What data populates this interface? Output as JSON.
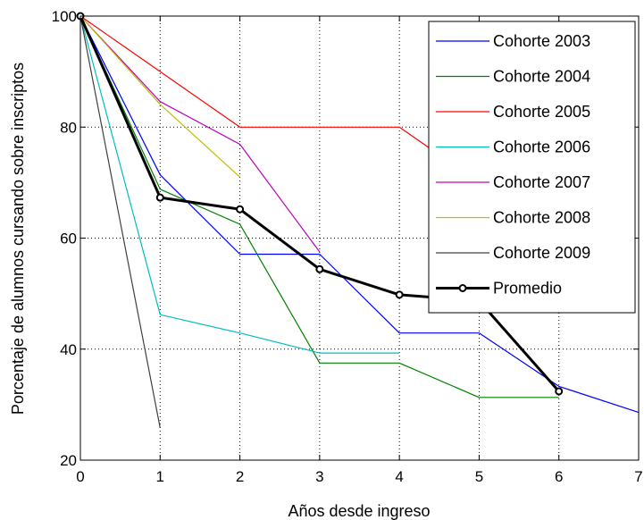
{
  "chart_data": {
    "type": "line",
    "title": "",
    "xlabel": "Años desde ingreso",
    "ylabel": "Porcentaje de alumnos cursando sobre inscriptos",
    "xlim": [
      0,
      7
    ],
    "ylim": [
      20,
      100
    ],
    "xticks": [
      0,
      1,
      2,
      3,
      4,
      5,
      6,
      7
    ],
    "yticks": [
      20,
      40,
      60,
      80,
      100
    ],
    "grid": true,
    "legend_position": "top-right",
    "series": [
      {
        "name": "Cohorte 2003",
        "color": "#0000ff",
        "x": [
          0,
          1,
          2,
          3,
          4,
          5,
          6,
          7
        ],
        "y": [
          100,
          71.4,
          57.1,
          57.1,
          42.9,
          42.9,
          33.3,
          28.6
        ],
        "marker": "none"
      },
      {
        "name": "Cohorte 2004",
        "color": "#008000",
        "x": [
          0,
          1,
          2,
          3,
          4,
          5,
          6
        ],
        "y": [
          100,
          68.8,
          62.5,
          37.5,
          37.5,
          31.3,
          31.3
        ],
        "marker": "none"
      },
      {
        "name": "Cohorte 2005",
        "color": "#ff0000",
        "x": [
          0,
          1,
          2,
          3,
          4,
          5
        ],
        "y": [
          100,
          90,
          80,
          80,
          80,
          70
        ],
        "marker": "none"
      },
      {
        "name": "Cohorte 2006",
        "color": "#00bfbf",
        "x": [
          0,
          1,
          2,
          3,
          4
        ],
        "y": [
          100,
          46.2,
          42.9,
          39.3,
          39.3
        ],
        "marker": "none"
      },
      {
        "name": "Cohorte 2007",
        "color": "#bf00bf",
        "x": [
          0,
          1,
          2,
          3
        ],
        "y": [
          100,
          84.6,
          76.9,
          57.5
        ],
        "marker": "none"
      },
      {
        "name": "Cohorte 2008",
        "color": "#bfbf00",
        "x": [
          0,
          1,
          2
        ],
        "y": [
          100,
          84.1,
          71.0
        ],
        "marker": "none"
      },
      {
        "name": "Cohorte 2009",
        "color": "#404040",
        "x": [
          0,
          1
        ],
        "y": [
          100,
          25.8
        ],
        "marker": "none"
      },
      {
        "name": "Promedio",
        "color": "#000000",
        "x": [
          0,
          1,
          2,
          3,
          4,
          5,
          6
        ],
        "y": [
          100,
          67.3,
          65.2,
          54.4,
          49.8,
          48.7,
          32.4
        ],
        "marker": "circle",
        "bold": true
      }
    ]
  }
}
